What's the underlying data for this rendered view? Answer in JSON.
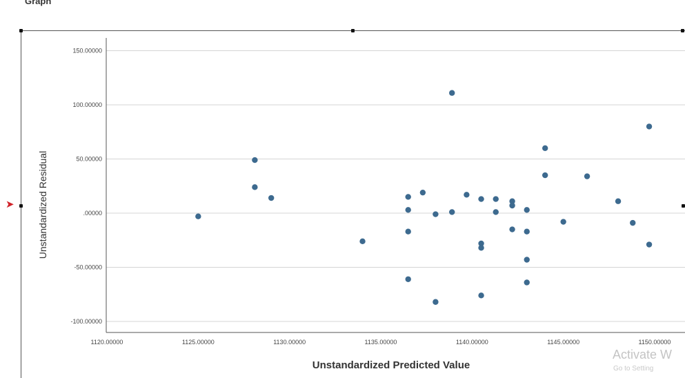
{
  "viewer": {
    "title": "Graph"
  },
  "watermark": {
    "line1": "Activate W",
    "line2": "Go to Setting"
  },
  "colors": {
    "points": "#3d6a8f",
    "gridlines": "#d4d4d4",
    "frame": "#555555",
    "handle": "#111111",
    "marker": "#d0232a"
  },
  "chart_data": {
    "type": "scatter",
    "xlabel": "Unstandardized Predicted Value",
    "ylabel": "Unstandardized Residual",
    "xlim": [
      1118,
      1152
    ],
    "ylim": [
      -112,
      165
    ],
    "x_ticks": [
      1120,
      1125,
      1130,
      1135,
      1140,
      1145,
      1150
    ],
    "x_tick_labels": [
      "1120.00000",
      "1125.00000",
      "1130.00000",
      "1135.00000",
      "1140.00000",
      "1145.00000",
      "1150.00000"
    ],
    "y_ticks": [
      150,
      100,
      50,
      0,
      -50,
      -100
    ],
    "y_tick_labels": [
      "150.00000",
      "100.00000",
      "50.00000",
      ".00000",
      "-50.00000",
      "-100.00000"
    ],
    "grid": {
      "horizontal": true,
      "vertical": false
    },
    "points": [
      {
        "x": 1125.0,
        "y": -3
      },
      {
        "x": 1128.1,
        "y": 49
      },
      {
        "x": 1128.1,
        "y": 24
      },
      {
        "x": 1129.0,
        "y": 14
      },
      {
        "x": 1134.0,
        "y": -26
      },
      {
        "x": 1136.5,
        "y": 15
      },
      {
        "x": 1136.5,
        "y": 3
      },
      {
        "x": 1136.5,
        "y": -17
      },
      {
        "x": 1136.5,
        "y": -61
      },
      {
        "x": 1137.3,
        "y": 19
      },
      {
        "x": 1138.0,
        "y": -1
      },
      {
        "x": 1138.0,
        "y": -82
      },
      {
        "x": 1138.9,
        "y": 111
      },
      {
        "x": 1138.9,
        "y": 1
      },
      {
        "x": 1139.7,
        "y": 17
      },
      {
        "x": 1140.5,
        "y": 13
      },
      {
        "x": 1140.5,
        "y": -28
      },
      {
        "x": 1140.5,
        "y": -32
      },
      {
        "x": 1140.5,
        "y": -76
      },
      {
        "x": 1141.3,
        "y": 13
      },
      {
        "x": 1141.3,
        "y": 1
      },
      {
        "x": 1142.2,
        "y": 11
      },
      {
        "x": 1142.2,
        "y": 7
      },
      {
        "x": 1142.2,
        "y": -15
      },
      {
        "x": 1143.0,
        "y": 3
      },
      {
        "x": 1143.0,
        "y": -17
      },
      {
        "x": 1143.0,
        "y": -43
      },
      {
        "x": 1143.0,
        "y": -64
      },
      {
        "x": 1144.0,
        "y": 60
      },
      {
        "x": 1144.0,
        "y": 35
      },
      {
        "x": 1145.0,
        "y": -8
      },
      {
        "x": 1146.3,
        "y": 34
      },
      {
        "x": 1148.0,
        "y": 11
      },
      {
        "x": 1148.8,
        "y": -9
      },
      {
        "x": 1149.7,
        "y": 80
      },
      {
        "x": 1149.7,
        "y": -29
      }
    ]
  }
}
